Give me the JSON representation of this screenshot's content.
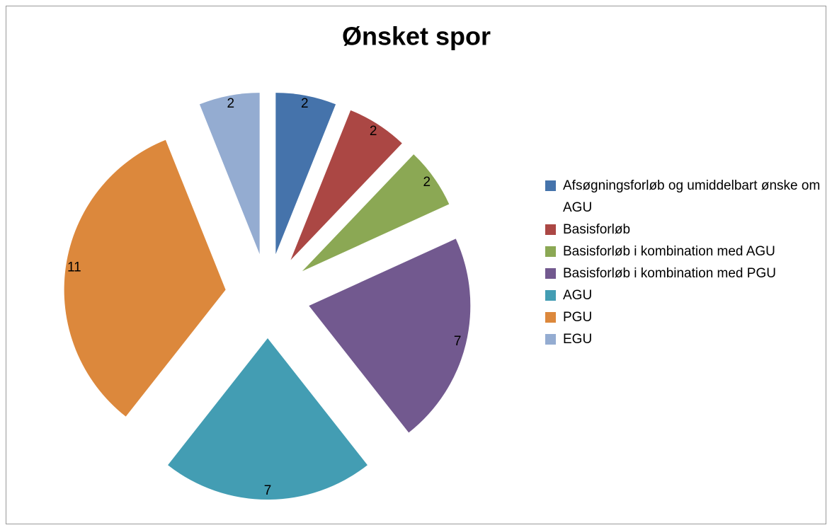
{
  "chart_data": {
    "type": "pie",
    "title": "Ønsket spor",
    "categories": [
      "Afsøgningsforløb og umiddelbart ønske om AGU",
      "Basisforløb",
      "Basisforløb i kombination med AGU",
      "Basisforløb i kombination med PGU",
      "AGU",
      "PGU",
      "EGU"
    ],
    "values": [
      2,
      2,
      2,
      7,
      7,
      11,
      2
    ],
    "colors": [
      "#4573ab",
      "#ab4744",
      "#8ba854",
      "#72598f",
      "#439db3",
      "#dc883c",
      "#94acd1"
    ],
    "exploded": true,
    "legend": "right"
  }
}
